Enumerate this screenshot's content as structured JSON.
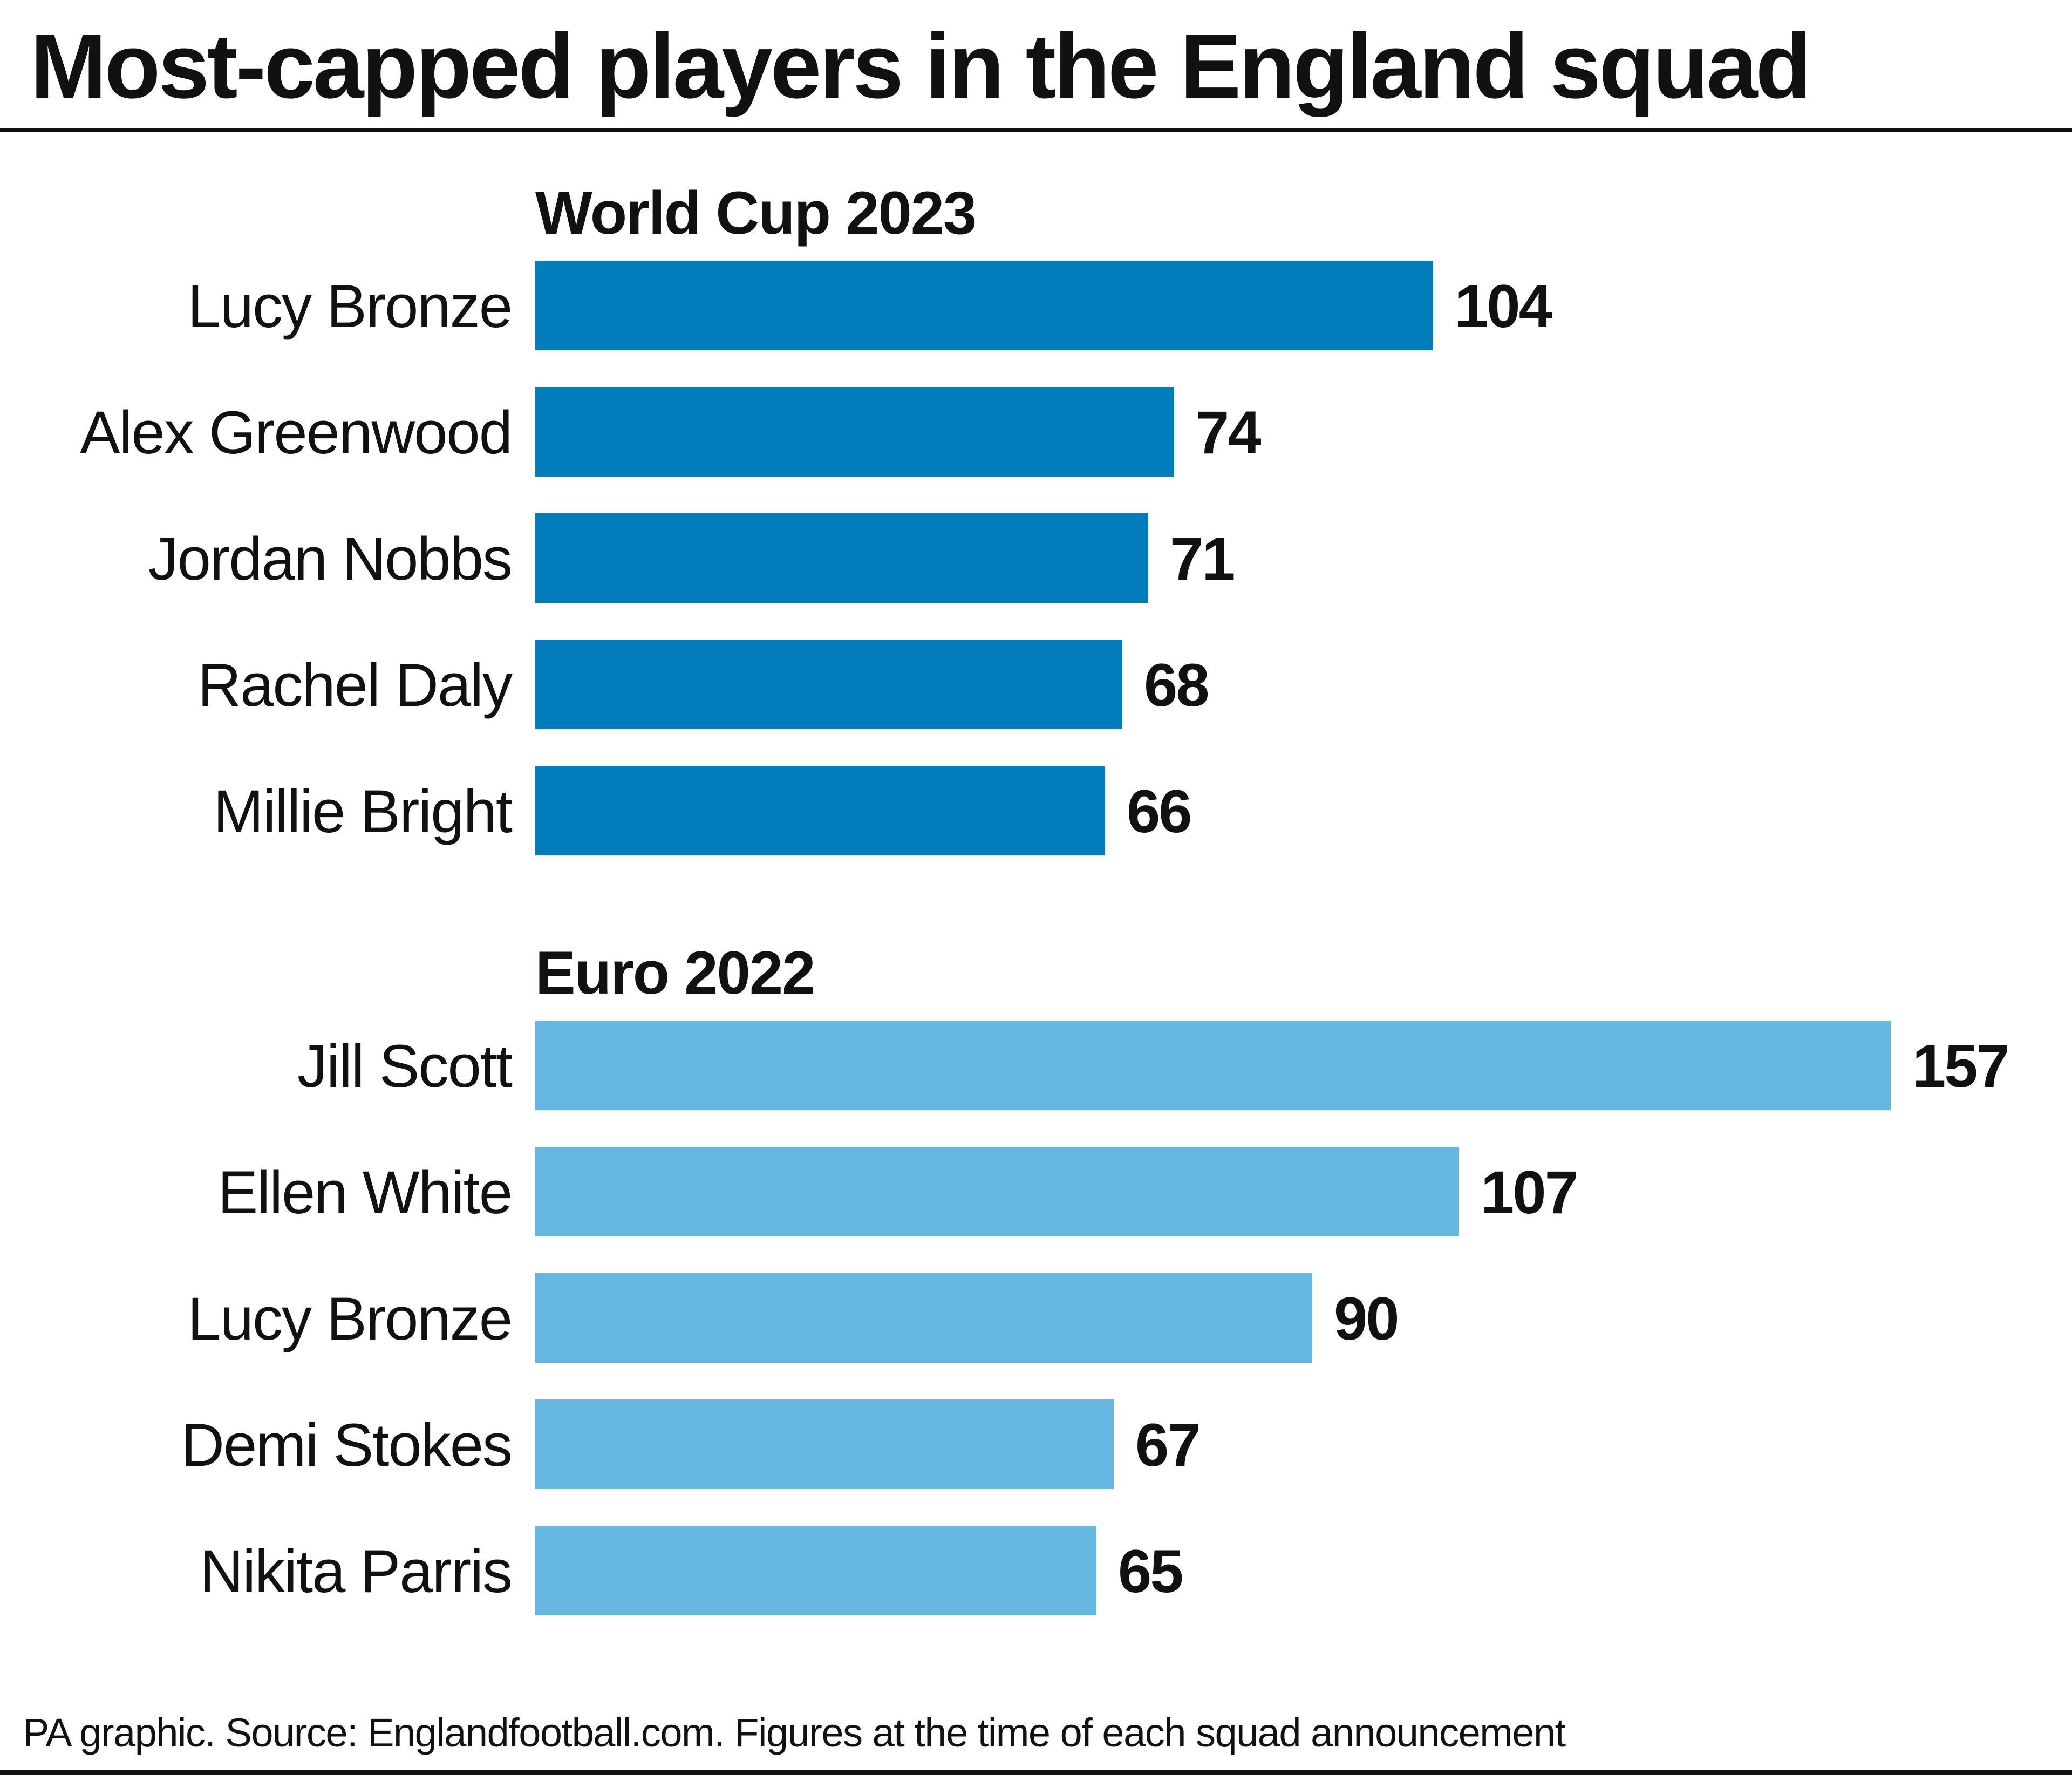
{
  "title": "Most-capped players in the England squad",
  "footer": "PA graphic. Source: Englandfootball.com. Figures at the time of each squad announcement",
  "colors": {
    "world_cup_bar": "#007DBA",
    "euro_bar": "#66B7E0",
    "text": "#111111",
    "background": "#FFFFFF"
  },
  "chart_data": [
    {
      "type": "bar",
      "orientation": "horizontal",
      "title": "World Cup 2023",
      "categories": [
        "Lucy Bronze",
        "Alex Greenwood",
        "Jordan Nobbs",
        "Rachel Daly",
        "Millie Bright"
      ],
      "values": [
        104,
        74,
        71,
        68,
        66
      ],
      "color": "#007DBA",
      "grid": false,
      "data_labels": true
    },
    {
      "type": "bar",
      "orientation": "horizontal",
      "title": "Euro 2022",
      "categories": [
        "Jill Scott",
        "Ellen White",
        "Lucy Bronze",
        "Demi Stokes",
        "Nikita Parris"
      ],
      "values": [
        157,
        107,
        90,
        67,
        65
      ],
      "color": "#66B7E0",
      "grid": false,
      "data_labels": true
    }
  ]
}
